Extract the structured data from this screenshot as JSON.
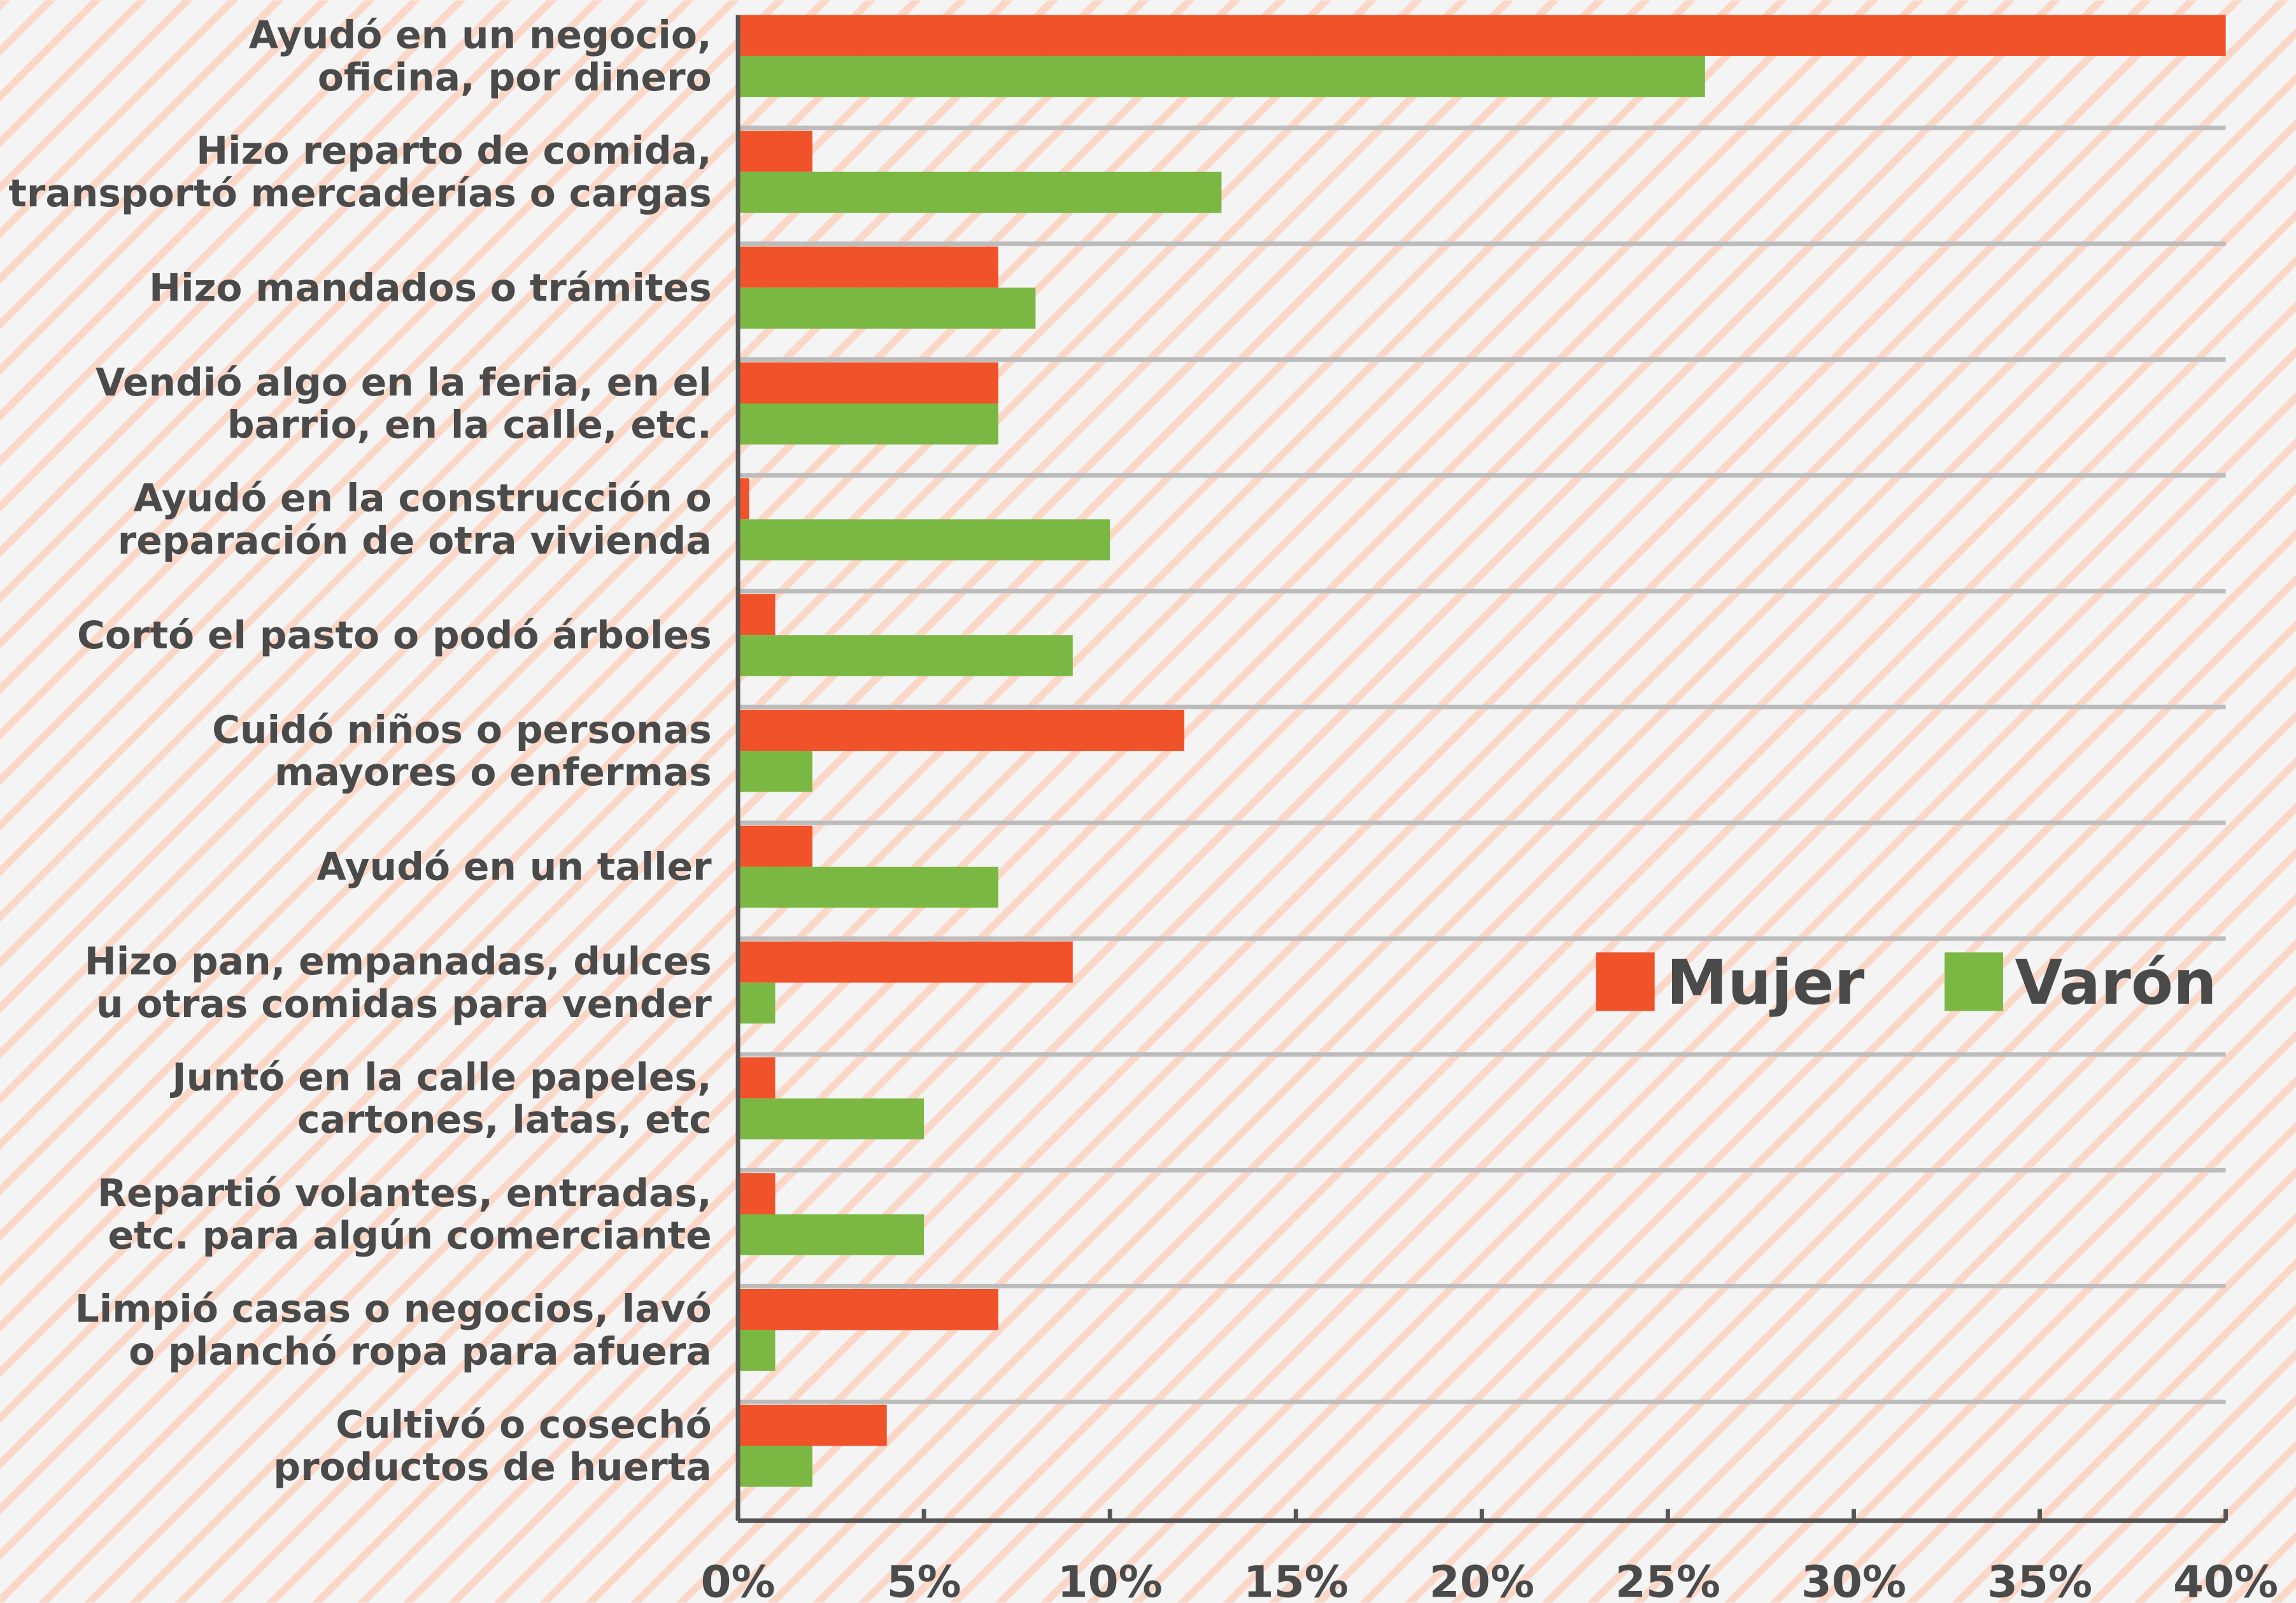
{
  "chart_data": {
    "type": "barh",
    "categories": [
      "Ayudó en un negocio,\noficina, por dinero",
      "Hizo reparto de comida,\ntransportó mercaderías o cargas",
      "Hizo mandados o trámites",
      "Vendió algo en la feria, en el\nbarrio, en la calle, etc.",
      "Ayudó en la construcción o\nreparación de otra vivienda",
      "Cortó el pasto o podó árboles",
      "Cuidó niños o personas\nmayores o enfermas",
      "Ayudó en un taller",
      "Hizo pan, empanadas, dulces\nu otras comidas para vender",
      "Juntó en la calle papeles,\ncartones, latas, etc",
      "Repartió volantes, entradas,\netc. para algún comerciante",
      "Limpió casas o negocios, lavó\no planchó ropa para afuera",
      "Cultivó o cosechó\nproductos de huerta"
    ],
    "series": [
      {
        "name": "Mujer",
        "color": "#f05229",
        "values": [
          40,
          2,
          7,
          7,
          0.3,
          1,
          12,
          2,
          9,
          1,
          1,
          7,
          4
        ]
      },
      {
        "name": "Varón",
        "color": "#7ab843",
        "values": [
          26,
          13,
          8,
          7,
          10,
          9,
          2,
          7,
          1,
          5,
          5,
          1,
          2
        ]
      }
    ],
    "xlim": [
      0,
      40
    ],
    "xticks": [
      {
        "value": 0,
        "label": "0%"
      },
      {
        "value": 5,
        "label": "5%"
      },
      {
        "value": 10,
        "label": "10%"
      },
      {
        "value": 15,
        "label": "15%"
      },
      {
        "value": 20,
        "label": "20%"
      },
      {
        "value": 25,
        "label": "25%"
      },
      {
        "value": 30,
        "label": "30%"
      },
      {
        "value": 35,
        "label": "35%"
      },
      {
        "value": 40,
        "label": "40%"
      }
    ],
    "legend": "right"
  }
}
